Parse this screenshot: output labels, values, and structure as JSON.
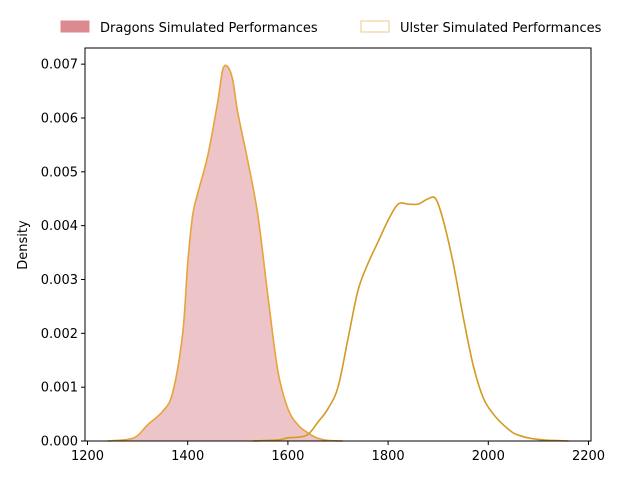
{
  "chart_data": {
    "type": "area",
    "title": "",
    "xlabel": "",
    "ylabel": "Density",
    "xlim": [
      1195,
      2205
    ],
    "ylim": [
      0,
      0.0073
    ],
    "x_ticks": [
      1200,
      1400,
      1600,
      1800,
      2000,
      2200
    ],
    "x_tick_labels": [
      "1200",
      "1400",
      "1600",
      "1800",
      "2000",
      "2200"
    ],
    "y_ticks": [
      0,
      0.001,
      0.002,
      0.003,
      0.004,
      0.005,
      0.006,
      0.007
    ],
    "y_tick_labels": [
      "0.000",
      "0.001",
      "0.002",
      "0.003",
      "0.004",
      "0.005",
      "0.006",
      "0.007"
    ],
    "grid": false,
    "legend_position": "top-center",
    "series": [
      {
        "name": "Dragons Simulated Performances",
        "fill": "#dc8a8f",
        "fill_opacity": 0.5,
        "stroke": "#e8a33a",
        "x": [
          1240,
          1280,
          1300,
          1320,
          1350,
          1370,
          1390,
          1400,
          1410,
          1420,
          1440,
          1460,
          1470,
          1480,
          1490,
          1500,
          1520,
          1540,
          1560,
          1580,
          1600,
          1620,
          1640,
          1660,
          1680,
          1710
        ],
        "y": [
          0,
          3e-05,
          0.0001,
          0.0003,
          0.00055,
          0.0009,
          0.002,
          0.0033,
          0.0042,
          0.0046,
          0.0053,
          0.0063,
          0.0069,
          0.00695,
          0.0067,
          0.0061,
          0.0052,
          0.0042,
          0.0027,
          0.0013,
          0.0006,
          0.0003,
          0.00015,
          5e-05,
          1e-05,
          0
        ]
      },
      {
        "name": "Ulster Simulated Performances",
        "fill": "none",
        "stroke": "#d49a22",
        "x": [
          1530,
          1580,
          1600,
          1620,
          1640,
          1660,
          1680,
          1700,
          1720,
          1740,
          1760,
          1780,
          1800,
          1820,
          1840,
          1860,
          1880,
          1895,
          1910,
          1930,
          1950,
          1970,
          1990,
          2010,
          2030,
          2050,
          2070,
          2090,
          2110,
          2130,
          2160
        ],
        "y": [
          0,
          2e-05,
          6e-05,
          7e-05,
          0.00012,
          0.00035,
          0.0006,
          0.001,
          0.0019,
          0.0028,
          0.0033,
          0.0037,
          0.0041,
          0.0044,
          0.0044,
          0.0044,
          0.0045,
          0.0045,
          0.0041,
          0.0033,
          0.0023,
          0.0014,
          0.0008,
          0.0005,
          0.0003,
          0.00015,
          8e-05,
          4e-05,
          2e-05,
          1e-05,
          0
        ]
      }
    ]
  }
}
